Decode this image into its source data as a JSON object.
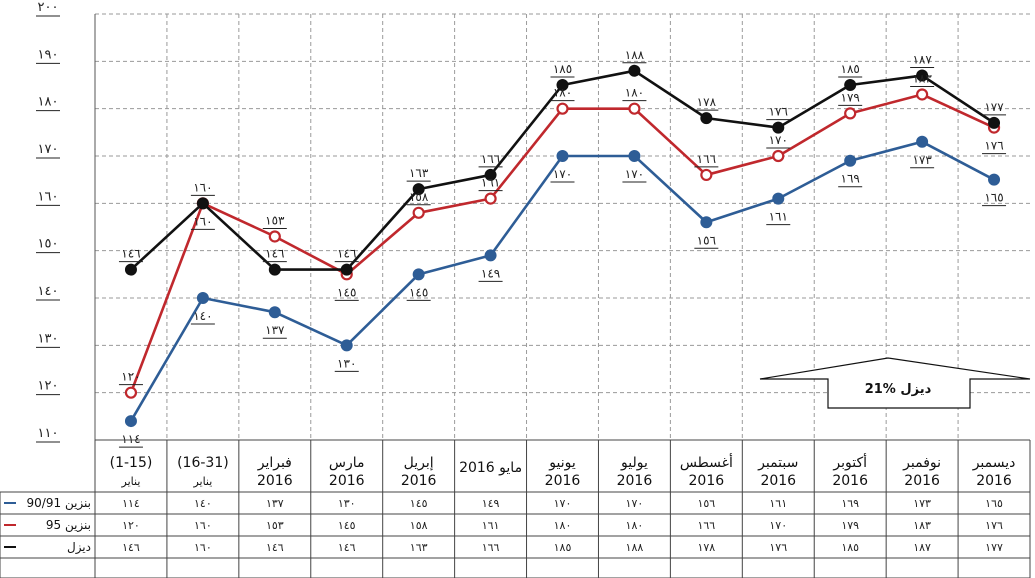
{
  "chart_data": {
    "type": "line",
    "ylim": [
      110,
      200
    ],
    "yticks": [
      {
        "value": 110,
        "label": "١١٠"
      },
      {
        "value": 120,
        "label": "١٢٠"
      },
      {
        "value": 130,
        "label": "١٣٠"
      },
      {
        "value": 140,
        "label": "١٤٠"
      },
      {
        "value": 150,
        "label": "١٥٠"
      },
      {
        "value": 160,
        "label": "١٦٠"
      },
      {
        "value": 170,
        "label": "١٧٠"
      },
      {
        "value": 180,
        "label": "١٨٠"
      },
      {
        "value": 190,
        "label": "١٩٠"
      },
      {
        "value": 200,
        "label": "٢٠٠"
      }
    ],
    "grid": true,
    "categories": [
      {
        "line1": "(1-15)",
        "line2": "يناير"
      },
      {
        "line1": "(16-31)",
        "line2": "يناير"
      },
      {
        "line1": "فبراير",
        "line2": "2016"
      },
      {
        "line1": "مارس",
        "line2": "2016"
      },
      {
        "line1": "إبريل",
        "line2": "2016"
      },
      {
        "line1": "مايو 2016",
        "line2": ""
      },
      {
        "line1": "يونيو",
        "line2": "2016"
      },
      {
        "line1": "يوليو",
        "line2": "2016"
      },
      {
        "line1": "أغسطس",
        "line2": "2016"
      },
      {
        "line1": "سبتمبر",
        "line2": "2016"
      },
      {
        "line1": "أكتوبر",
        "line2": "2016"
      },
      {
        "line1": "نوفمبر",
        "line2": "2016"
      },
      {
        "line1": "ديسمبر",
        "line2": "2016"
      }
    ],
    "series": [
      {
        "name": "بنزين 90/91",
        "color": "#2e5d96",
        "marker": "filled",
        "values": [
          114,
          140,
          137,
          130,
          145,
          149,
          170,
          170,
          156,
          161,
          169,
          173,
          165
        ],
        "labels": [
          "١١٤",
          "١٤٠",
          "١٣٧",
          "١٣٠",
          "١٤٥",
          "١٤٩",
          "١٧٠",
          "١٧٠",
          "١٥٦",
          "١٦١",
          "١٦٩",
          "١٧٣",
          "١٦٥"
        ]
      },
      {
        "name": "بنزين 95",
        "color": "#c0282d",
        "marker": "hollow",
        "values": [
          120,
          160,
          153,
          145,
          158,
          161,
          180,
          180,
          166,
          170,
          179,
          183,
          176
        ],
        "labels": [
          "١٢٠",
          "١٦٠",
          "١٥٣",
          "١٤٥",
          "١٥٨",
          "١٦١",
          "١٨٠",
          "١٨٠",
          "١٦٦",
          "١٧٠",
          "١٧٩",
          "١٨٣",
          "١٧٦"
        ]
      },
      {
        "name": "ديزل",
        "color": "#111111",
        "marker": "filled",
        "values": [
          146,
          160,
          146,
          146,
          163,
          166,
          185,
          188,
          178,
          176,
          185,
          187,
          177
        ],
        "labels": [
          "١٤٦",
          "١٦٠",
          "١٤٦",
          "١٤٦",
          "١٦٣",
          "١٦٦",
          "١٨٥",
          "١٨٨",
          "١٧٨",
          "١٧٦",
          "١٨٥",
          "١٨٧",
          "١٧٧"
        ]
      }
    ],
    "annotation": "21% ديزل"
  }
}
